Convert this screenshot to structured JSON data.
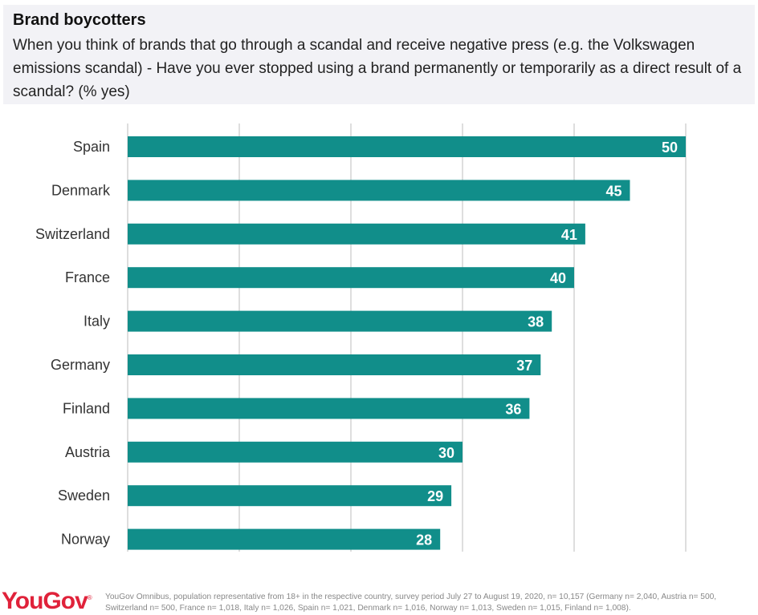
{
  "header": {
    "title": "Brand boycotters",
    "subtitle": "When you think of brands that go through a scandal and receive negative press (e.g. the Volkswagen emissions scandal) - Have you ever stopped using a brand permanently or temporarily as a direct result of a scandal? (% yes)"
  },
  "colors": {
    "bar": "#118e8a",
    "grid": "#d4d4d4",
    "brand": "#e0223a"
  },
  "chart_data": {
    "type": "bar",
    "orientation": "horizontal",
    "title": "Brand boycotters",
    "ylabel": "% yes",
    "xlim": [
      0,
      50
    ],
    "grid": true,
    "categories": [
      "Spain",
      "Denmark",
      "Switzerland",
      "France",
      "Italy",
      "Germany",
      "Finland",
      "Austria",
      "Sweden",
      "Norway"
    ],
    "values": [
      50,
      45,
      41,
      40,
      38,
      37,
      36,
      30,
      29,
      28
    ]
  },
  "footer": {
    "logo": "YouGov",
    "source": "YouGov Omnibus, population representative from 18+ in the respective country, survey period July 27 to August 19, 2020, n= 10,157 (Germany n= 2,040, Austria n= 500, Switzerland n= 500, France n= 1,018, Italy n= 1,026, Spain n= 1,021, Denmark n= 1,016, Norway n= 1,013, Sweden n= 1,015, Finland n= 1,008)."
  }
}
